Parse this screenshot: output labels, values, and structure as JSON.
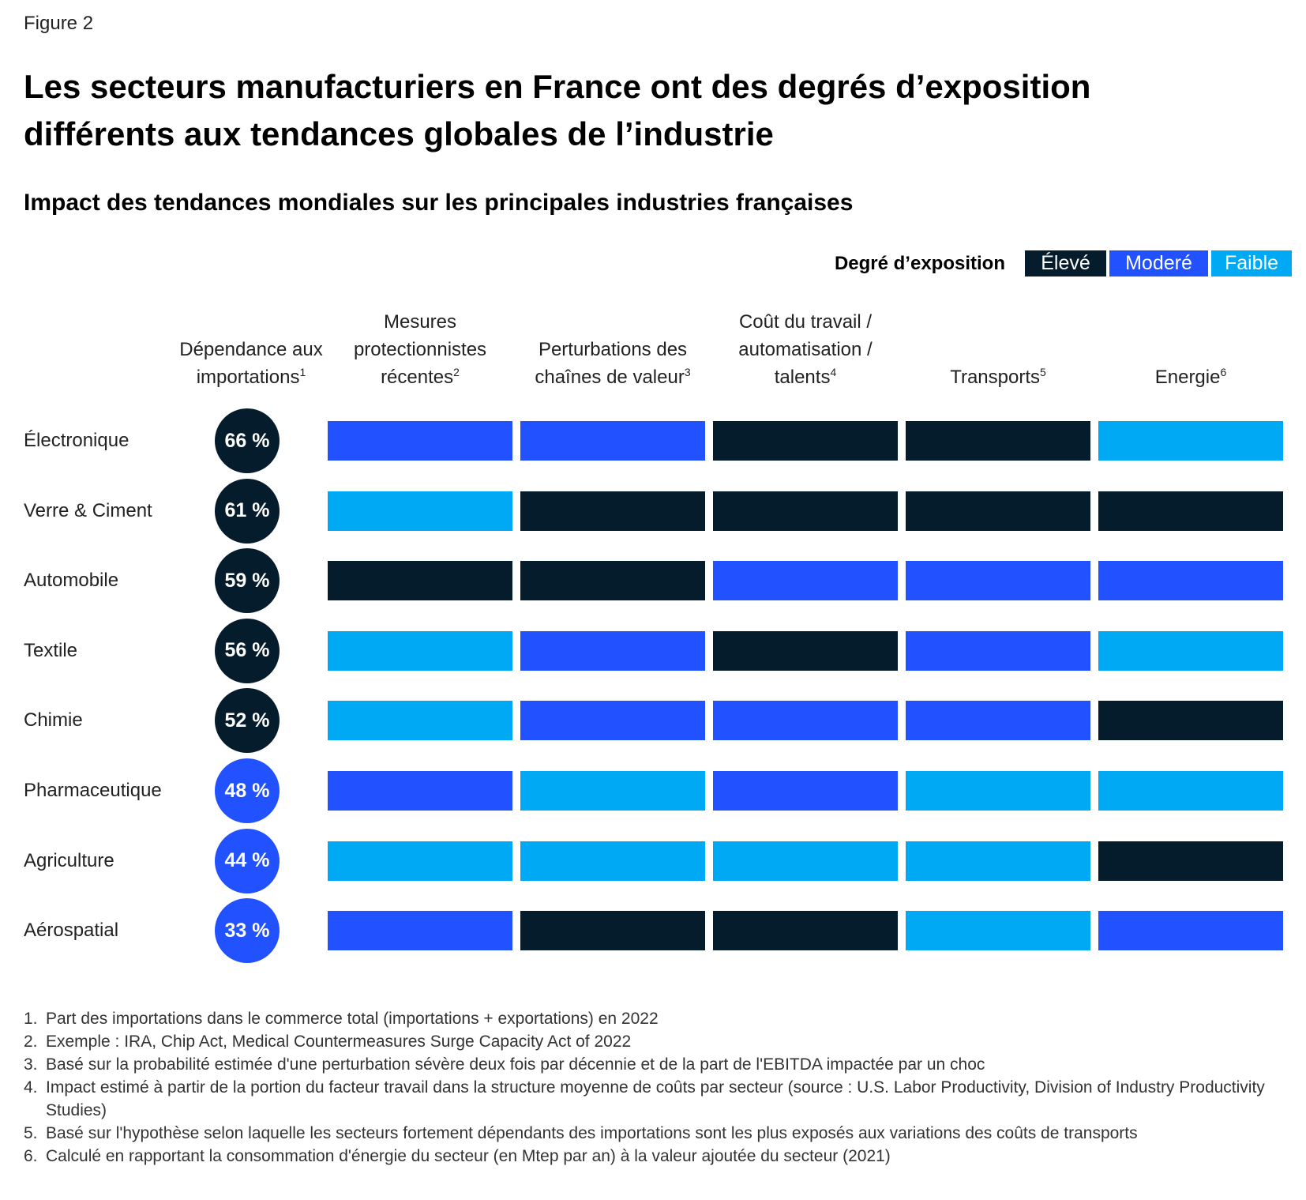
{
  "figure_label": "Figure 2",
  "title_line1": "Les secteurs manufacturiers en France ont des degrés d’exposition",
  "title_line2": "différents aux tendances globales de l’industrie",
  "subtitle": "Impact des tendances mondiales sur les principales industries françaises",
  "legend": {
    "title": "Degré d’exposition",
    "items": [
      {
        "label": "Élevé",
        "color": "#051c2c"
      },
      {
        "label": "Moderé",
        "color": "#2251ff"
      },
      {
        "label": "Faible",
        "color": "#00a9f4"
      }
    ]
  },
  "chart_data": {
    "type": "table",
    "columns": [
      {
        "label": "Dépendance aux\nimportations",
        "note": "1"
      },
      {
        "label": "Mesures\nprotectionnistes\nrécentes",
        "note": "2"
      },
      {
        "label": "Perturbations des\nchaînes de valeur",
        "note": "3"
      },
      {
        "label": "Coût du travail /\nautomatisation /\ntalents",
        "note": "4"
      },
      {
        "label": "Transports",
        "note": "5"
      },
      {
        "label": "Energie",
        "note": "6"
      }
    ],
    "levels": {
      "E": "Élevé",
      "M": "Moderé",
      "F": "Faible"
    },
    "rows": [
      {
        "sector": "Électronique",
        "import_dependence": "66 %",
        "import_level": "E",
        "exposure": [
          "M",
          "M",
          "E",
          "E",
          "F"
        ]
      },
      {
        "sector": "Verre & Ciment",
        "import_dependence": "61 %",
        "import_level": "E",
        "exposure": [
          "F",
          "E",
          "E",
          "E",
          "E"
        ]
      },
      {
        "sector": "Automobile",
        "import_dependence": "59 %",
        "import_level": "E",
        "exposure": [
          "E",
          "E",
          "M",
          "M",
          "M"
        ]
      },
      {
        "sector": "Textile",
        "import_dependence": "56 %",
        "import_level": "E",
        "exposure": [
          "F",
          "M",
          "E",
          "M",
          "F"
        ]
      },
      {
        "sector": "Chimie",
        "import_dependence": "52 %",
        "import_level": "E",
        "exposure": [
          "F",
          "M",
          "M",
          "M",
          "E"
        ]
      },
      {
        "sector": "Pharmaceutique",
        "import_dependence": "48 %",
        "import_level": "M",
        "exposure": [
          "M",
          "F",
          "M",
          "F",
          "F"
        ]
      },
      {
        "sector": "Agriculture",
        "import_dependence": "44 %",
        "import_level": "M",
        "exposure": [
          "F",
          "F",
          "F",
          "F",
          "E"
        ]
      },
      {
        "sector": "Aérospatial",
        "import_dependence": "33 %",
        "import_level": "M",
        "exposure": [
          "M",
          "E",
          "E",
          "F",
          "M"
        ]
      }
    ]
  },
  "footnotes": [
    {
      "num": "1.",
      "text": "Part des importations dans le commerce total (importations + exportations) en 2022"
    },
    {
      "num": "2.",
      "text": "Exemple : IRA, Chip Act, Medical Countermeasures Surge Capacity Act of 2022"
    },
    {
      "num": "3.",
      "text": "Basé sur la probabilité estimée d'une perturbation sévère deux fois par décennie et de la part de l'EBITDA impactée par un choc"
    },
    {
      "num": "4.",
      "text": "Impact estimé à partir de la portion du facteur travail dans la structure moyenne de coûts par secteur (source : U.S. Labor Productivity, Division of Industry Productivity Studies)"
    },
    {
      "num": "5.",
      "text": "Basé sur l'hypothèse selon laquelle les secteurs fortement dépendants des importations sont les plus exposés aux variations des coûts de transports"
    },
    {
      "num": "6.",
      "text": "Calculé en rapportant la consommation d'énergie du secteur (en Mtep par an) à la valeur ajoutée du secteur (2021)"
    }
  ]
}
